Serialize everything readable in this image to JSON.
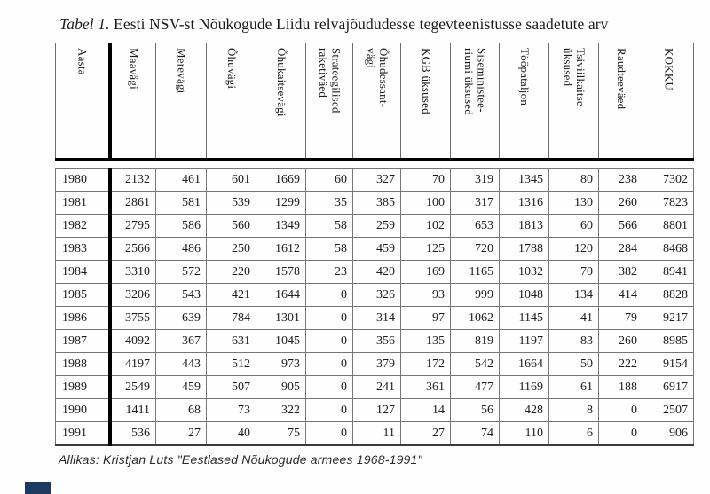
{
  "title": {
    "label": "Tabel 1.",
    "text": " Eesti NSV-st Nõukogude Liidu relvajõududesse tegevteenistusse saadetute arv"
  },
  "source_note": "Allikas: Kristjan Luts \"Eestlased Nõukogude armees 1968-1991\"",
  "artifact_color": "#1d3a60",
  "chart_data": {
    "type": "table",
    "title": "Tabel 1. Eesti NSV-st Nõukogude Liidu relvajõududesse tegevteenistusse saadetute arv",
    "columns": [
      "Aasta",
      "Maavägi",
      "Merevägi",
      "Õhuvägi",
      "Õhukaitsevägi",
      "Strateegilised raketiväed",
      "Õhudessant-vägi",
      "KGB üksused",
      "Siseministee-riumi üksused",
      "Tööpataljon",
      "Tsiviilkaitse üksused",
      "Raudteeväed",
      "KOKKU"
    ],
    "header_display": [
      "Aasta",
      "Maavägi",
      "Merevägi",
      "Õhuvägi",
      "Õhukaitsevägi",
      "Strateegilised\nraketiväed",
      "Õhudessant-\nvägi",
      "KGB üksused",
      "Siseministee-\nriumi üksused",
      "Tööpataljon",
      "Tsiviilkaitse\nüksused",
      "Raudteeväed",
      "KOKKU"
    ],
    "rows": [
      [
        "1980",
        2132,
        461,
        601,
        1669,
        60,
        327,
        70,
        319,
        1345,
        80,
        238,
        7302
      ],
      [
        "1981",
        2861,
        581,
        539,
        1299,
        35,
        385,
        100,
        317,
        1316,
        130,
        260,
        7823
      ],
      [
        "1982",
        2795,
        586,
        560,
        1349,
        58,
        259,
        102,
        653,
        1813,
        60,
        566,
        8801
      ],
      [
        "1983",
        2566,
        486,
        250,
        1612,
        58,
        459,
        125,
        720,
        1788,
        120,
        284,
        8468
      ],
      [
        "1984",
        3310,
        572,
        220,
        1578,
        23,
        420,
        169,
        1165,
        1032,
        70,
        382,
        8941
      ],
      [
        "1985",
        3206,
        543,
        421,
        1644,
        0,
        326,
        93,
        999,
        1048,
        134,
        414,
        8828
      ],
      [
        "1986",
        3755,
        639,
        784,
        1301,
        0,
        314,
        97,
        1062,
        1145,
        41,
        79,
        9217
      ],
      [
        "1987",
        4092,
        367,
        631,
        1045,
        0,
        356,
        135,
        819,
        1197,
        83,
        260,
        8985
      ],
      [
        "1988",
        4197,
        443,
        512,
        973,
        0,
        379,
        172,
        542,
        1664,
        50,
        222,
        9154
      ],
      [
        "1989",
        2549,
        459,
        507,
        905,
        0,
        241,
        361,
        477,
        1169,
        61,
        188,
        6917
      ],
      [
        "1990",
        1411,
        68,
        73,
        322,
        0,
        127,
        14,
        56,
        428,
        8,
        0,
        2507
      ],
      [
        "1991",
        536,
        27,
        40,
        75,
        0,
        11,
        27,
        74,
        110,
        6,
        0,
        906
      ]
    ]
  }
}
